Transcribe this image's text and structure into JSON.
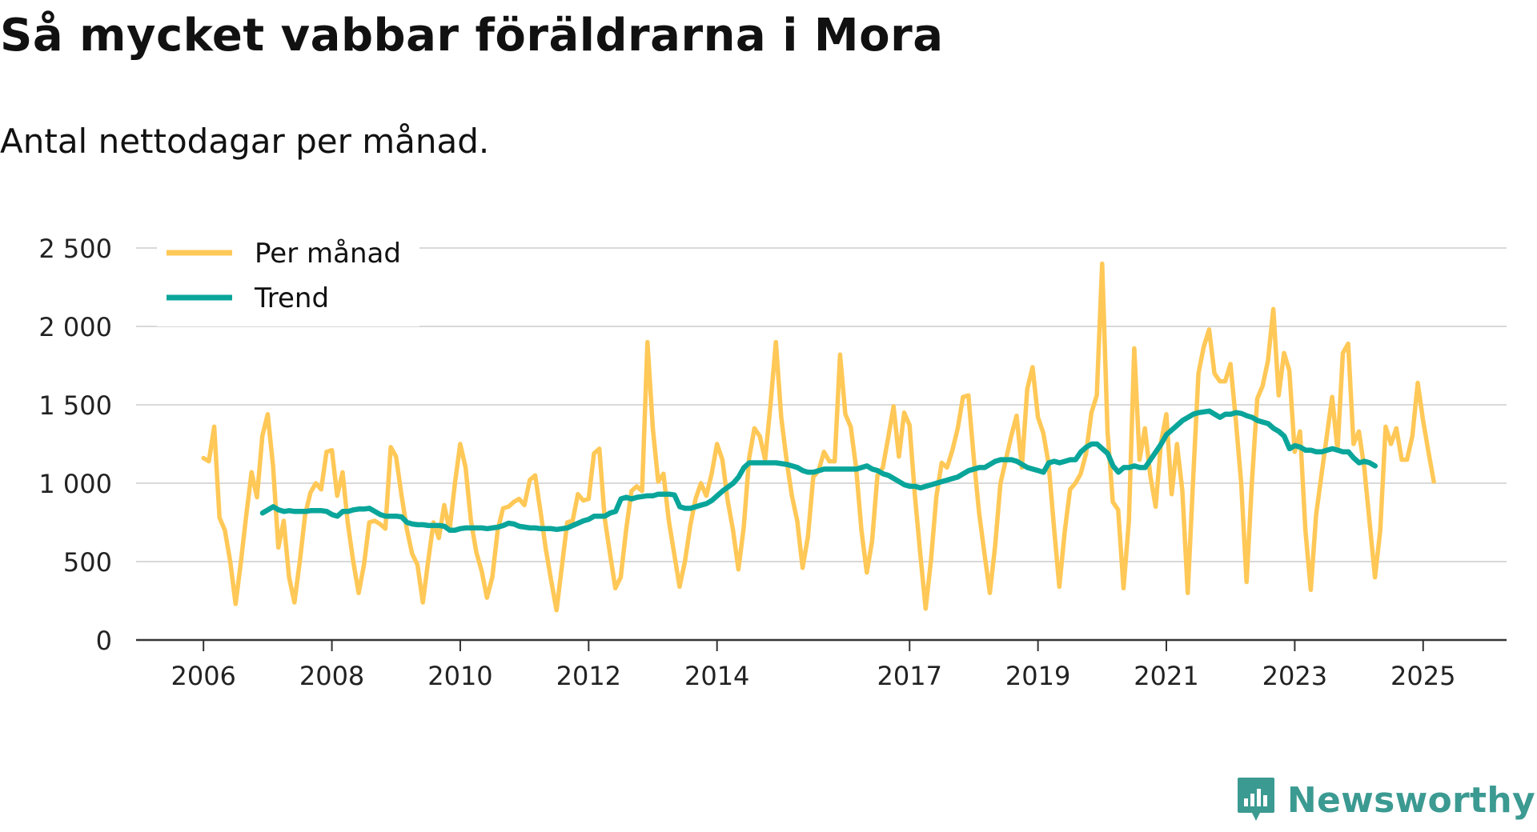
{
  "header": {
    "title": "Så mycket vabbar föräldrarna i Mora",
    "subtitle": "Antal nettodagar per månad."
  },
  "brand": {
    "name": "Newsworthy",
    "color": "#3b9a91"
  },
  "colors": {
    "monthly": "#ffc857",
    "trend": "#0aa59a",
    "grid": "#d9d9d9",
    "axis": "#333333"
  },
  "chart_data": {
    "type": "line",
    "title": "Så mycket vabbar föräldrarna i Mora",
    "subtitle": "Antal nettodagar per månad.",
    "xlabel": "",
    "ylabel": "",
    "x_start": 2006.0,
    "x_step": 0.08333,
    "xlim": [
      2004.95,
      2026.3
    ],
    "ylim": [
      0,
      2500
    ],
    "yticks": [
      0,
      500,
      1000,
      1500,
      2000,
      2500
    ],
    "ytick_labels": [
      "0",
      "500",
      "1 000",
      "1 500",
      "2 000",
      "2 500"
    ],
    "xticks": [
      2006,
      2008,
      2010,
      2012,
      2014,
      2017,
      2019,
      2021,
      2023,
      2025
    ],
    "xtick_labels": [
      "2006",
      "2008",
      "2010",
      "2012",
      "2014",
      "2017",
      "2019",
      "2021",
      "2023",
      "2025"
    ],
    "grid": true,
    "legend_position": "top-left",
    "series": [
      {
        "name": "Per månad",
        "start": 2006.0,
        "values": [
          1160,
          1140,
          1360,
          780,
          700,
          500,
          230,
          500,
          800,
          1070,
          910,
          1300,
          1440,
          1110,
          590,
          760,
          400,
          240,
          500,
          800,
          940,
          1000,
          960,
          1200,
          1210,
          920,
          1070,
          740,
          500,
          300,
          480,
          750,
          760,
          740,
          710,
          1230,
          1170,
          930,
          710,
          550,
          480,
          240,
          500,
          750,
          650,
          860,
          700,
          1000,
          1250,
          1100,
          760,
          560,
          440,
          270,
          400,
          700,
          840,
          850,
          880,
          900,
          860,
          1020,
          1050,
          820,
          580,
          380,
          190,
          470,
          750,
          760,
          930,
          890,
          900,
          1190,
          1220,
          780,
          550,
          330,
          400,
          700,
          950,
          980,
          950,
          1900,
          1350,
          1010,
          1060,
          760,
          550,
          340,
          500,
          730,
          900,
          1000,
          920,
          1060,
          1250,
          1150,
          890,
          700,
          450,
          720,
          1160,
          1350,
          1300,
          1150,
          1500,
          1900,
          1420,
          1150,
          920,
          760,
          460,
          660,
          1040,
          1080,
          1200,
          1140,
          1140,
          1820,
          1440,
          1360,
          1100,
          700,
          430,
          630,
          1050,
          1100,
          1290,
          1490,
          1170,
          1450,
          1370,
          920,
          550,
          200,
          510,
          910,
          1130,
          1100,
          1210,
          1350,
          1550,
          1560,
          1160,
          810,
          550,
          300,
          600,
          1000,
          1150,
          1300,
          1430,
          1100,
          1600,
          1740,
          1420,
          1320,
          1120,
          720,
          340,
          690,
          960,
          1000,
          1060,
          1190,
          1450,
          1560,
          2400,
          1330,
          880,
          830,
          330,
          760,
          1860,
          1150,
          1350,
          1050,
          850,
          1260,
          1440,
          930,
          1250,
          950,
          300,
          1020,
          1700,
          1870,
          1980,
          1700,
          1650,
          1650,
          1760,
          1400,
          1000,
          370,
          1010,
          1540,
          1620,
          1780,
          2110,
          1560,
          1830,
          1720,
          1200,
          1330,
          700,
          320,
          800,
          1050,
          1300,
          1550,
          1210,
          1830,
          1890,
          1250,
          1330,
          1100,
          750,
          400,
          700,
          1360,
          1250,
          1350,
          1150,
          1150,
          1300,
          1640,
          1400,
          1200,
          1010
        ]
      },
      {
        "name": "Trend",
        "start": 2006.92,
        "values": [
          810,
          830,
          850,
          830,
          820,
          825,
          820,
          820,
          820,
          825,
          825,
          825,
          820,
          800,
          790,
          820,
          820,
          830,
          835,
          835,
          840,
          820,
          800,
          790,
          790,
          790,
          785,
          750,
          740,
          735,
          735,
          730,
          730,
          730,
          725,
          700,
          700,
          710,
          715,
          715,
          715,
          715,
          710,
          715,
          720,
          730,
          745,
          740,
          725,
          720,
          715,
          715,
          710,
          710,
          710,
          705,
          710,
          715,
          730,
          745,
          760,
          770,
          790,
          790,
          790,
          810,
          820,
          900,
          910,
          900,
          910,
          915,
          920,
          920,
          930,
          930,
          930,
          925,
          850,
          840,
          840,
          850,
          860,
          870,
          890,
          920,
          950,
          975,
          1000,
          1040,
          1100,
          1130,
          1130,
          1130,
          1130,
          1130,
          1130,
          1125,
          1120,
          1110,
          1100,
          1080,
          1070,
          1070,
          1080,
          1090,
          1090,
          1090,
          1090,
          1090,
          1090,
          1090,
          1100,
          1110,
          1090,
          1080,
          1060,
          1050,
          1030,
          1010,
          990,
          980,
          980,
          970,
          980,
          990,
          1000,
          1010,
          1020,
          1030,
          1040,
          1060,
          1080,
          1090,
          1100,
          1100,
          1120,
          1140,
          1150,
          1150,
          1150,
          1140,
          1120,
          1100,
          1090,
          1080,
          1070,
          1130,
          1140,
          1130,
          1140,
          1150,
          1150,
          1200,
          1230,
          1250,
          1250,
          1220,
          1190,
          1110,
          1070,
          1100,
          1100,
          1110,
          1100,
          1100,
          1150,
          1200,
          1250,
          1310,
          1340,
          1370,
          1400,
          1420,
          1440,
          1450,
          1455,
          1460,
          1440,
          1420,
          1440,
          1440,
          1450,
          1445,
          1430,
          1420,
          1400,
          1390,
          1380,
          1350,
          1330,
          1300,
          1220,
          1240,
          1230,
          1210,
          1210,
          1200,
          1200,
          1210,
          1220,
          1210,
          1200,
          1200,
          1160,
          1130,
          1140,
          1130,
          1110
        ]
      }
    ]
  }
}
